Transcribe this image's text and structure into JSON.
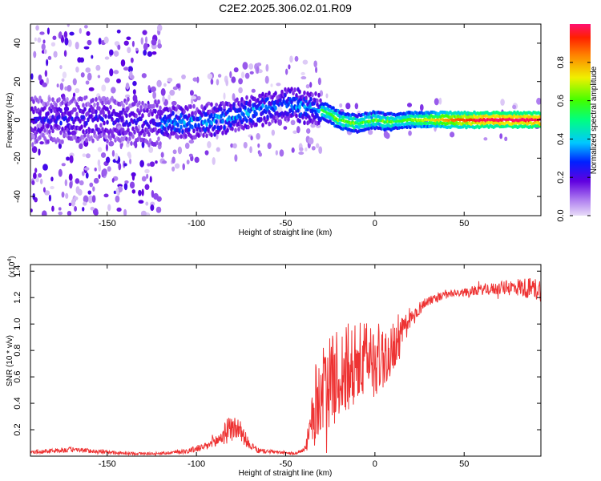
{
  "title": "C2E2.2025.306.02.01.R09",
  "chart_data": [
    {
      "type": "heatmap",
      "name": "spectrogram",
      "xlabel": "Height of straight line (km)",
      "ylabel": "Frequency (Hz)",
      "xlim": [
        -193,
        93
      ],
      "ylim": [
        -50,
        50
      ],
      "xticks": [
        -150,
        -100,
        -50,
        0,
        50
      ],
      "yticks": [
        -40,
        -20,
        0,
        20,
        40
      ],
      "colorbar": {
        "label": "Normalized spectral amplitude",
        "range": [
          0,
          1
        ],
        "ticks": [
          "0.0",
          "0.2",
          "0.4",
          "0.6",
          "0.8"
        ],
        "tick_values": [
          0,
          0.2,
          0.4,
          0.6,
          0.8
        ]
      },
      "ridge": {
        "x": [
          -193,
          -150,
          -120,
          -100,
          -90,
          -80,
          -70,
          -60,
          -50,
          -45,
          -40,
          -35,
          -30,
          -25,
          -22,
          -20,
          -15,
          -10,
          -5,
          0,
          5,
          10,
          20,
          50,
          93
        ],
        "freq": [
          0,
          0,
          -2,
          -1,
          0,
          2,
          4,
          6,
          8,
          8,
          7,
          6,
          5,
          3,
          1,
          0,
          -1,
          -2,
          -1,
          0,
          -1,
          -1,
          0,
          0,
          0
        ]
      }
    },
    {
      "type": "line",
      "name": "snr",
      "xlabel": "Height of straight line (km)",
      "ylabel": "SNR (10 * v/v)",
      "y_exponent_label": "(x10",
      "y_exponent": "4",
      "xlim": [
        -193,
        93
      ],
      "ylim": [
        0,
        1.45
      ],
      "xticks": [
        -150,
        -100,
        -50,
        0,
        50
      ],
      "yticks": [
        "0.2",
        "0.4",
        "0.6",
        "0.8",
        "1.0",
        "1.2",
        "1.4"
      ],
      "ytick_values": [
        0.2,
        0.4,
        0.6,
        0.8,
        1.0,
        1.2,
        1.4
      ],
      "envelope": {
        "x": [
          -193,
          -180,
          -170,
          -140,
          -120,
          -105,
          -95,
          -88,
          -82,
          -78,
          -74,
          -70,
          -65,
          -55,
          -45,
          -40,
          -37,
          -33,
          -28,
          -22,
          -15,
          -8,
          -2,
          5,
          12,
          20,
          25,
          30,
          40,
          50,
          60,
          70,
          80,
          93
        ],
        "mean": [
          0.03,
          0.04,
          0.05,
          0.02,
          0.02,
          0.04,
          0.07,
          0.12,
          0.2,
          0.22,
          0.16,
          0.08,
          0.04,
          0.03,
          0.02,
          0.04,
          0.15,
          0.42,
          0.52,
          0.6,
          0.66,
          0.7,
          0.73,
          0.75,
          0.85,
          1.02,
          1.12,
          1.18,
          1.22,
          1.24,
          1.26,
          1.27,
          1.28,
          1.26
        ],
        "noise": [
          0.01,
          0.02,
          0.02,
          0.01,
          0.01,
          0.02,
          0.03,
          0.06,
          0.1,
          0.1,
          0.07,
          0.03,
          0.02,
          0.01,
          0.01,
          0.02,
          0.1,
          0.3,
          0.33,
          0.35,
          0.35,
          0.32,
          0.3,
          0.25,
          0.18,
          0.08,
          0.05,
          0.04,
          0.03,
          0.03,
          0.04,
          0.05,
          0.07,
          0.09
        ]
      },
      "color": "#ee3333"
    }
  ]
}
